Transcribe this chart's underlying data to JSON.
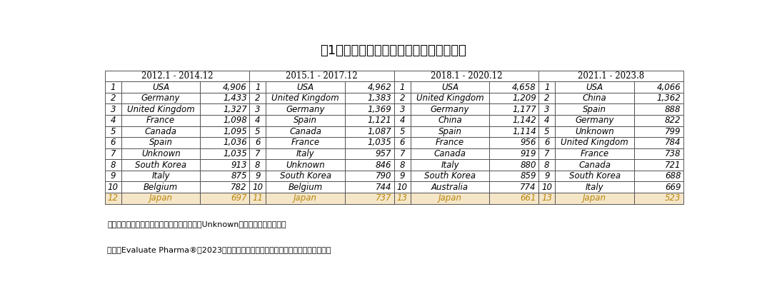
{
  "title": "表1　低分子医薬の臨床試験実施国の順位",
  "periods": [
    "2012.1 - 2014.12",
    "2015.1 - 2017.12",
    "2018.1 - 2020.12",
    "2021.1 - 2023.8"
  ],
  "columns": [
    [
      [
        "1",
        "USA",
        "4,906"
      ],
      [
        "2",
        "Germany",
        "1,433"
      ],
      [
        "3",
        "United Kingdom",
        "1,327"
      ],
      [
        "4",
        "France",
        "1,098"
      ],
      [
        "5",
        "Canada",
        "1,095"
      ],
      [
        "6",
        "Spain",
        "1,036"
      ],
      [
        "7",
        "Unknown",
        "1,035"
      ],
      [
        "8",
        "South Korea",
        "913"
      ],
      [
        "9",
        "Italy",
        "875"
      ],
      [
        "10",
        "Belgium",
        "782"
      ],
      [
        "12",
        "Japan",
        "697"
      ]
    ],
    [
      [
        "1",
        "USA",
        "4,962"
      ],
      [
        "2",
        "United Kingdom",
        "1,383"
      ],
      [
        "3",
        "Germany",
        "1,369"
      ],
      [
        "4",
        "Spain",
        "1,121"
      ],
      [
        "5",
        "Canada",
        "1,087"
      ],
      [
        "6",
        "France",
        "1,035"
      ],
      [
        "7",
        "Italy",
        "957"
      ],
      [
        "8",
        "Unknown",
        "846"
      ],
      [
        "9",
        "South Korea",
        "790"
      ],
      [
        "10",
        "Belgium",
        "744"
      ],
      [
        "11",
        "Japan",
        "737"
      ]
    ],
    [
      [
        "1",
        "USA",
        "4,658"
      ],
      [
        "2",
        "United Kingdom",
        "1,209"
      ],
      [
        "3",
        "Germany",
        "1,177"
      ],
      [
        "4",
        "China",
        "1,142"
      ],
      [
        "5",
        "Spain",
        "1,114"
      ],
      [
        "6",
        "France",
        "956"
      ],
      [
        "7",
        "Canada",
        "919"
      ],
      [
        "8",
        "Italy",
        "880"
      ],
      [
        "9",
        "South Korea",
        "859"
      ],
      [
        "10",
        "Australia",
        "774"
      ],
      [
        "13",
        "Japan",
        "661"
      ]
    ],
    [
      [
        "1",
        "USA",
        "4,066"
      ],
      [
        "2",
        "China",
        "1,362"
      ],
      [
        "3",
        "Spain",
        "888"
      ],
      [
        "4",
        "Germany",
        "822"
      ],
      [
        "5",
        "Unknown",
        "799"
      ],
      [
        "6",
        "United Kingdom",
        "784"
      ],
      [
        "7",
        "France",
        "738"
      ],
      [
        "8",
        "Canada",
        "721"
      ],
      [
        "9",
        "South Korea",
        "688"
      ],
      [
        "10",
        "Italy",
        "669"
      ],
      [
        "13",
        "Japan",
        "523"
      ]
    ]
  ],
  "note1": "注：臨床試験実施国が不明である場合には、Unknownとして集計されている",
  "note2": "出所：Evaluate Pharma®（2023年９月時点）をもとに医薬産業政策研究所にて作成",
  "japan_bg": "#f5e6c8",
  "row_bg": "#ffffff",
  "border_color": "#555555",
  "japan_text_color": "#b8860b",
  "normal_text_color": "#000000",
  "header_text_color": "#000000",
  "fig_width": 10.74,
  "fig_height": 4.26,
  "dpi": 100
}
